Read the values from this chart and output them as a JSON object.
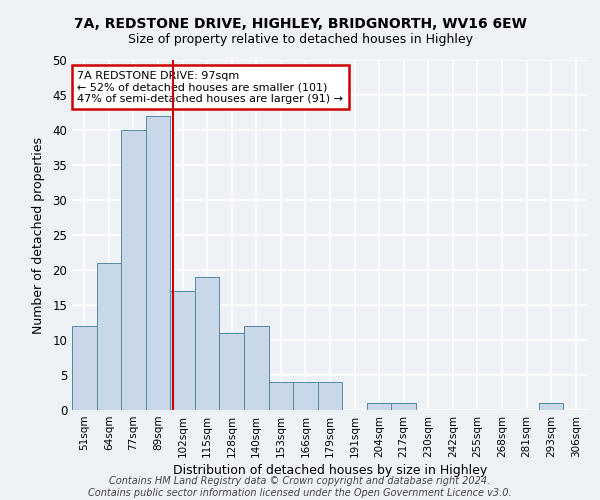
{
  "title1": "7A, REDSTONE DRIVE, HIGHLEY, BRIDGNORTH, WV16 6EW",
  "title2": "Size of property relative to detached houses in Highley",
  "xlabel": "Distribution of detached houses by size in Highley",
  "ylabel": "Number of detached properties",
  "categories": [
    "51sqm",
    "64sqm",
    "77sqm",
    "89sqm",
    "102sqm",
    "115sqm",
    "128sqm",
    "140sqm",
    "153sqm",
    "166sqm",
    "179sqm",
    "191sqm",
    "204sqm",
    "217sqm",
    "230sqm",
    "242sqm",
    "255sqm",
    "268sqm",
    "281sqm",
    "293sqm",
    "306sqm"
  ],
  "values": [
    12,
    21,
    40,
    42,
    17,
    19,
    11,
    12,
    4,
    4,
    4,
    0,
    1,
    1,
    0,
    0,
    0,
    0,
    0,
    1,
    0
  ],
  "bar_color": "#c8d8e8",
  "bar_edge_color": "#5588aa",
  "redline_x": 3.62,
  "annotation_title": "7A REDSTONE DRIVE: 97sqm",
  "annotation_line1": "← 52% of detached houses are smaller (101)",
  "annotation_line2": "47% of semi-detached houses are larger (91) →",
  "annotation_box_color": "#ffffff",
  "annotation_box_edge": "#cc0000",
  "redline_color": "#cc0000",
  "ylim": [
    0,
    50
  ],
  "yticks": [
    0,
    5,
    10,
    15,
    20,
    25,
    30,
    35,
    40,
    45,
    50
  ],
  "footer": "Contains HM Land Registry data © Crown copyright and database right 2024.\nContains public sector information licensed under the Open Government Licence v3.0.",
  "bg_color": "#eef2f7",
  "grid_color": "#ffffff"
}
